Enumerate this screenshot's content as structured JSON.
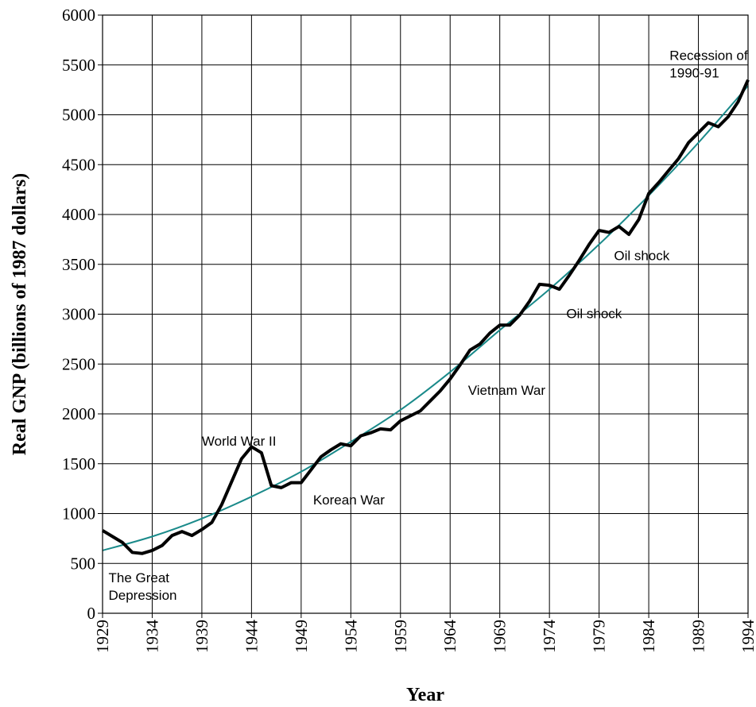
{
  "chart_data": {
    "type": "line",
    "title": "",
    "xlabel": "Year",
    "ylabel": "Real GNP (billions of 1987 dollars)",
    "xlim": [
      1929,
      1994
    ],
    "ylim": [
      0,
      6000
    ],
    "x_ticks": [
      "1929",
      "1934",
      "1939",
      "1944",
      "1949",
      "1954",
      "1959",
      "1964",
      "1969",
      "1974",
      "1979",
      "1984",
      "1989",
      "1994"
    ],
    "y_ticks": [
      "0",
      "500",
      "1000",
      "1500",
      "2000",
      "2500",
      "3000",
      "3500",
      "4000",
      "4500",
      "5000",
      "5500",
      "6000"
    ],
    "grid": true,
    "series": [
      {
        "name": "",
        "color": "#000000",
        "x": [
          1929,
          1930,
          1931,
          1932,
          1933,
          1934,
          1935,
          1936,
          1937,
          1938,
          1939,
          1940,
          1941,
          1942,
          1943,
          1944,
          1945,
          1946,
          1947,
          1948,
          1949,
          1950,
          1951,
          1952,
          1953,
          1954,
          1955,
          1956,
          1957,
          1958,
          1959,
          1960,
          1961,
          1962,
          1963,
          1964,
          1965,
          1966,
          1967,
          1968,
          1969,
          1970,
          1971,
          1972,
          1973,
          1974,
          1975,
          1976,
          1977,
          1978,
          1979,
          1980,
          1981,
          1982,
          1983,
          1984,
          1985,
          1986,
          1987,
          1988,
          1989,
          1990,
          1991,
          1992,
          1993,
          1994
        ],
        "y": [
          830,
          770,
          710,
          610,
          600,
          630,
          680,
          780,
          820,
          780,
          840,
          910,
          1090,
          1320,
          1550,
          1670,
          1610,
          1280,
          1260,
          1310,
          1310,
          1440,
          1570,
          1640,
          1700,
          1680,
          1780,
          1810,
          1850,
          1840,
          1930,
          1980,
          2030,
          2130,
          2230,
          2350,
          2490,
          2640,
          2700,
          2810,
          2890,
          2890,
          2990,
          3130,
          3300,
          3290,
          3250,
          3390,
          3540,
          3700,
          3840,
          3820,
          3880,
          3800,
          3950,
          4210,
          4320,
          4440,
          4560,
          4720,
          4820,
          4920,
          4880,
          4980,
          5130,
          5350
        ]
      },
      {
        "name": "",
        "color": "#1a8a8a",
        "x": [
          1929,
          1934,
          1939,
          1944,
          1949,
          1954,
          1959,
          1964,
          1969,
          1974,
          1979,
          1984,
          1989,
          1994
        ],
        "y": [
          630,
          770,
          950,
          1170,
          1420,
          1720,
          2040,
          2420,
          2840,
          3250,
          3700,
          4190,
          4720,
          5290
        ]
      }
    ],
    "annotations": [
      {
        "lines": [
          "Recession of",
          "1990-91"
        ],
        "x": 1986.1,
        "y": 5550
      },
      {
        "lines": [
          "Oil shock"
        ],
        "x": 1980.5,
        "y": 3540
      },
      {
        "lines": [
          "Oil shock"
        ],
        "x": 1975.7,
        "y": 2960
      },
      {
        "lines": [
          "Vietnam  War"
        ],
        "x": 1965.8,
        "y": 2190
      },
      {
        "lines": [
          "World War II"
        ],
        "x": 1939.0,
        "y": 1680
      },
      {
        "lines": [
          "Korean War"
        ],
        "x": 1950.2,
        "y": 1090
      },
      {
        "lines": [
          "The Great",
          "Depression"
        ],
        "x": 1929.6,
        "y": 310
      }
    ]
  }
}
